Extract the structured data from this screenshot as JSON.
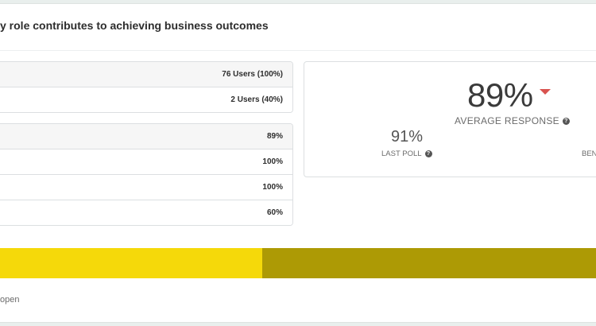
{
  "card": {
    "title": "y role contributes to achieving business outcomes"
  },
  "users_table": {
    "rows": [
      {
        "value": "76 Users (100%)"
      },
      {
        "value": "2 Users (40%)"
      }
    ]
  },
  "scores_table": {
    "rows": [
      {
        "value": "89%"
      },
      {
        "value": "100%"
      },
      {
        "value": "100%"
      },
      {
        "value": "60%"
      }
    ]
  },
  "stats": {
    "average_value": "89%",
    "average_label": "AVERAGE RESPONSE",
    "trend": "down",
    "trend_color": "#d9534f",
    "last_poll_value": "91%",
    "last_poll_label": "LAST POLL",
    "benchmark_label_partial": "BEN",
    "help_icon": "?"
  },
  "progress_bar": {
    "segments": [
      {
        "color": "#f5d90a",
        "fraction": 0.44
      },
      {
        "color": "#ad9a05",
        "fraction": 0.56
      }
    ]
  },
  "footer": {
    "text": "open"
  }
}
